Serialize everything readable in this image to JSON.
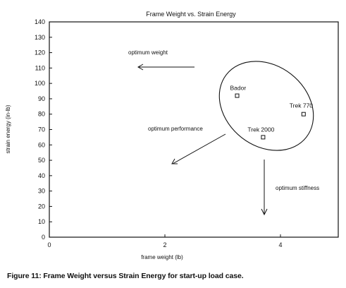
{
  "chart_data": {
    "type": "scatter",
    "title": "Frame Weight vs. Strain Energy",
    "xlabel": "frame weight (lb)",
    "ylabel": "strain energy (in-lb)",
    "xlim": [
      0,
      5
    ],
    "ylim": [
      0,
      140
    ],
    "xticks": [
      0,
      2,
      4
    ],
    "yticks": [
      0,
      10,
      20,
      30,
      40,
      50,
      60,
      70,
      80,
      90,
      100,
      110,
      120,
      130,
      140
    ],
    "grid": false,
    "points": [
      {
        "label": "Bador",
        "x": 3.25,
        "y": 92
      },
      {
        "label": "Trek 770",
        "x": 4.4,
        "y": 80
      },
      {
        "label": "Trek 2000",
        "x": 3.7,
        "y": 65
      }
    ],
    "annotations": [
      {
        "text": "optimum weight",
        "direction": "left"
      },
      {
        "text": "optimum performance",
        "direction": "down-left"
      },
      {
        "text": "optimum stiffness",
        "direction": "down"
      }
    ]
  },
  "caption": "Figure 11: Frame Weight versus Strain Energy for start-up load case."
}
